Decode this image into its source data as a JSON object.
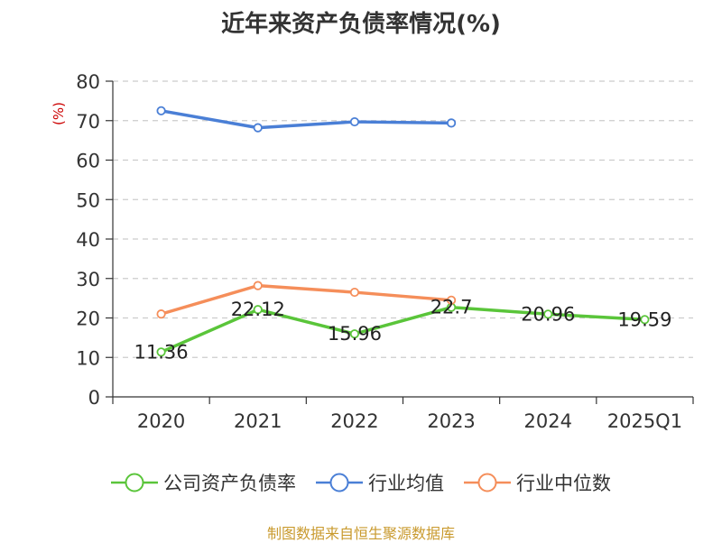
{
  "chart_data": {
    "type": "line",
    "title": "近年来资产负债率情况(%)",
    "ylabel": "(%)",
    "ylim": [
      0,
      80
    ],
    "yticks": [
      0,
      10,
      20,
      30,
      40,
      50,
      60,
      70,
      80
    ],
    "categories": [
      "2020",
      "2021",
      "2022",
      "2023",
      "2024",
      "2025Q1"
    ],
    "grid": true,
    "legend_position": "bottom",
    "series": [
      {
        "name": "公司资产负债率",
        "color": "#5ac53a",
        "values": [
          11.36,
          22.12,
          15.96,
          22.7,
          20.96,
          19.59
        ],
        "labels": [
          "11.36",
          "22.12",
          "15.96",
          "22.7",
          "20.96",
          "19.59"
        ]
      },
      {
        "name": "行业均值",
        "color": "#4a7fd6",
        "values": [
          72.5,
          68.2,
          69.7,
          69.4,
          null,
          null
        ]
      },
      {
        "name": "行业中位数",
        "color": "#f58e5a",
        "values": [
          21.0,
          28.2,
          26.5,
          24.5,
          null,
          null
        ]
      }
    ],
    "source": "制图数据来自恒生聚源数据库"
  }
}
